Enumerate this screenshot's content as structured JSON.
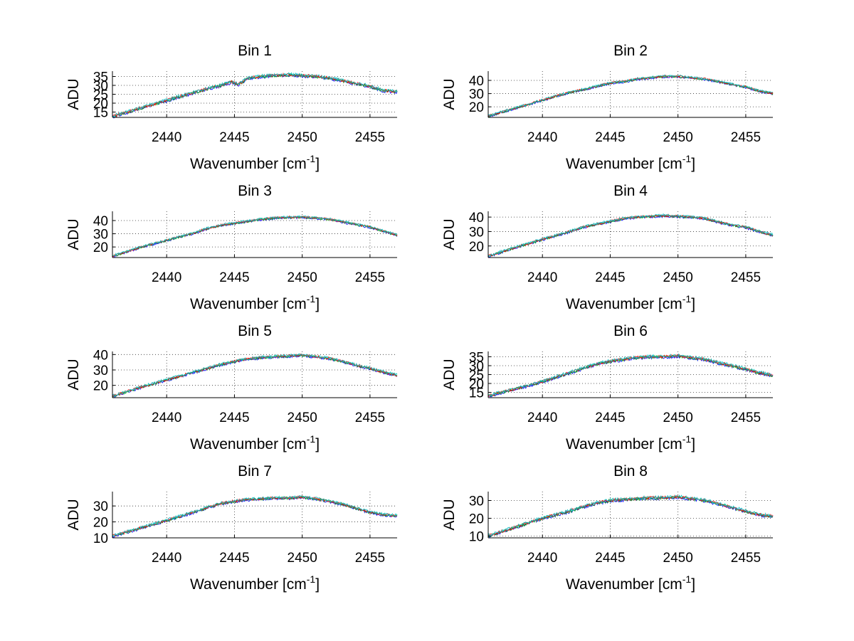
{
  "chart_data": {
    "type": "line",
    "layout_grid": "4x2",
    "note": "Each panel overlays several nearly identical noisy spectra (blue, green, red, cyan). Values below are the approximate underlying envelope.",
    "x_range": [
      2436,
      2457
    ],
    "series_colors": [
      "#0000ff",
      "#00a000",
      "#ff0000",
      "#00bfbf"
    ],
    "panels": [
      {
        "title": "Bin 1",
        "xlabel": "Wavenumber [cm",
        "xlabel_sup": "-1",
        "xlabel_end": "]",
        "ylabel": "ADU",
        "xlim": [
          2436,
          2457
        ],
        "ylim": [
          12,
          38
        ],
        "xticks": [
          "2440",
          "2445",
          "2450",
          "2455"
        ],
        "yticks": [
          15,
          20,
          25,
          30,
          35
        ],
        "x": [
          2436,
          2438,
          2440,
          2442,
          2443,
          2444,
          2444.8,
          2445.3,
          2446,
          2447,
          2448,
          2449,
          2450,
          2451,
          2452,
          2453,
          2454,
          2455,
          2456,
          2457
        ],
        "y": [
          12.5,
          17,
          21.5,
          26,
          28,
          30,
          32,
          30.5,
          34,
          35,
          35.5,
          36,
          35.5,
          35,
          34,
          32.5,
          31,
          29.5,
          27,
          26.5
        ]
      },
      {
        "title": "Bin 2",
        "xlabel": "Wavenumber [cm",
        "xlabel_sup": "-1",
        "xlabel_end": "]",
        "ylabel": "ADU",
        "xlim": [
          2436,
          2457
        ],
        "ylim": [
          12,
          47
        ],
        "xticks": [
          "2440",
          "2445",
          "2450",
          "2455"
        ],
        "yticks": [
          20,
          30,
          40
        ],
        "x": [
          2436,
          2438,
          2440,
          2442,
          2443,
          2444,
          2445,
          2446,
          2447,
          2448,
          2449,
          2450,
          2451,
          2452,
          2453,
          2454,
          2455,
          2456,
          2457
        ],
        "y": [
          13,
          19,
          25,
          31,
          33,
          35.5,
          38,
          39,
          41,
          42,
          43,
          43,
          42,
          41,
          39,
          37,
          35,
          32,
          30
        ]
      },
      {
        "title": "Bin 3",
        "xlabel": "Wavenumber [cm",
        "xlabel_sup": "-1",
        "xlabel_end": "]",
        "ylabel": "ADU",
        "xlim": [
          2436,
          2457
        ],
        "ylim": [
          12,
          47
        ],
        "xticks": [
          "2440",
          "2445",
          "2450",
          "2455"
        ],
        "yticks": [
          20,
          30,
          40
        ],
        "x": [
          2436,
          2438,
          2440,
          2442,
          2443,
          2444,
          2445,
          2446,
          2447,
          2448,
          2449,
          2450,
          2451,
          2452,
          2453,
          2454,
          2455,
          2456,
          2457
        ],
        "y": [
          13,
          19.5,
          25,
          30.5,
          34,
          36.5,
          38,
          39.5,
          41,
          42,
          42.5,
          42.5,
          42,
          41,
          39,
          37,
          35,
          32,
          29
        ]
      },
      {
        "title": "Bin 4",
        "xlabel": "Wavenumber [cm",
        "xlabel_sup": "-1",
        "xlabel_end": "]",
        "ylabel": "ADU",
        "xlim": [
          2436,
          2457
        ],
        "ylim": [
          12,
          44
        ],
        "xticks": [
          "2440",
          "2445",
          "2450",
          "2455"
        ],
        "yticks": [
          20,
          30,
          40
        ],
        "x": [
          2436,
          2438,
          2440,
          2442,
          2443,
          2444,
          2445,
          2446,
          2447,
          2448,
          2449,
          2450,
          2451,
          2452,
          2453,
          2454,
          2455,
          2456,
          2457
        ],
        "y": [
          13,
          19,
          24.5,
          30,
          33,
          35,
          37,
          39,
          40,
          40.5,
          41,
          40.5,
          40,
          39,
          36.5,
          34.5,
          33,
          30,
          27.5
        ]
      },
      {
        "title": "Bin 5",
        "xlabel": "Wavenumber [cm",
        "xlabel_sup": "-1",
        "xlabel_end": "]",
        "ylabel": "ADU",
        "xlim": [
          2436,
          2457
        ],
        "ylim": [
          12,
          42
        ],
        "xticks": [
          "2440",
          "2445",
          "2450",
          "2455"
        ],
        "yticks": [
          20,
          30,
          40
        ],
        "x": [
          2436,
          2438,
          2440,
          2442,
          2443,
          2444,
          2445,
          2446,
          2447,
          2448,
          2449,
          2450,
          2451,
          2452,
          2453,
          2454,
          2455,
          2456,
          2457
        ],
        "y": [
          13,
          18.5,
          23.5,
          28.5,
          31,
          33.5,
          35.5,
          37,
          38,
          38.5,
          39,
          39.5,
          38.5,
          37.5,
          35.5,
          33,
          31,
          28.5,
          26.5
        ]
      },
      {
        "title": "Bin 6",
        "xlabel": "Wavenumber [cm",
        "xlabel_sup": "-1",
        "xlabel_end": "]",
        "ylabel": "ADU",
        "xlim": [
          2436,
          2457
        ],
        "ylim": [
          12,
          38
        ],
        "xticks": [
          "2440",
          "2445",
          "2450",
          "2455"
        ],
        "yticks": [
          15,
          20,
          25,
          30,
          35
        ],
        "x": [
          2436,
          2438,
          2440,
          2442,
          2443,
          2444,
          2445,
          2446,
          2447,
          2448,
          2449,
          2450,
          2451,
          2452,
          2453,
          2454,
          2455,
          2456,
          2457
        ],
        "y": [
          13,
          17,
          21,
          26,
          28.5,
          31,
          32.5,
          33.5,
          34.5,
          35,
          35,
          35.5,
          34.5,
          33.5,
          31.5,
          30,
          28,
          26,
          24.5
        ]
      },
      {
        "title": "Bin 7",
        "xlabel": "Wavenumber [cm",
        "xlabel_sup": "-1",
        "xlabel_end": "]",
        "ylabel": "ADU",
        "xlim": [
          2436,
          2457
        ],
        "ylim": [
          10,
          39
        ],
        "xticks": [
          "2440",
          "2445",
          "2450",
          "2455"
        ],
        "yticks": [
          10,
          20,
          30
        ],
        "x": [
          2436,
          2438,
          2440,
          2442,
          2443,
          2444,
          2445,
          2446,
          2447,
          2448,
          2449,
          2450,
          2451,
          2452,
          2453,
          2454,
          2455,
          2456,
          2457
        ],
        "y": [
          11,
          16,
          21,
          26,
          29,
          31.5,
          33,
          34,
          34.5,
          35,
          35,
          35.5,
          34.5,
          33,
          31,
          28.5,
          26,
          24.5,
          24
        ]
      },
      {
        "title": "Bin 8",
        "xlabel": "Wavenumber [cm",
        "xlabel_sup": "-1",
        "xlabel_end": "]",
        "ylabel": "ADU",
        "xlim": [
          2436,
          2457
        ],
        "ylim": [
          9,
          35
        ],
        "xticks": [
          "2440",
          "2445",
          "2450",
          "2455"
        ],
        "yticks": [
          10,
          20,
          30
        ],
        "x": [
          2436,
          2438,
          2440,
          2442,
          2443,
          2444,
          2445,
          2446,
          2447,
          2448,
          2449,
          2450,
          2451,
          2452,
          2453,
          2454,
          2455,
          2456,
          2457
        ],
        "y": [
          10,
          15,
          20,
          24,
          26.5,
          28.5,
          30,
          30.5,
          31,
          31.5,
          31.5,
          32,
          31,
          30,
          28,
          26,
          24,
          22,
          21
        ]
      }
    ]
  }
}
